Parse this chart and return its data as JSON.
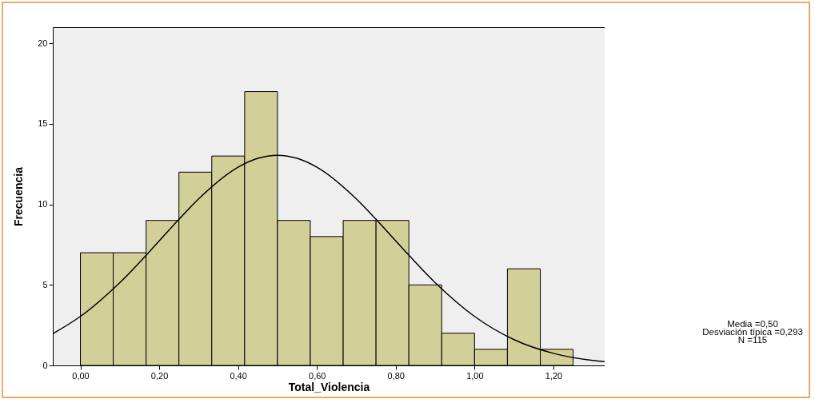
{
  "chart_data": {
    "type": "histogram",
    "xlabel": "Total_Violencia",
    "ylabel": "Frecuencia",
    "bins": [
      0,
      0.0833,
      0.1667,
      0.25,
      0.3333,
      0.4167,
      0.5,
      0.5833,
      0.6667,
      0.75,
      0.8333,
      0.9167,
      1,
      1.0833,
      1.1667,
      1.25
    ],
    "values": [
      7,
      7,
      9,
      12,
      13,
      17,
      9,
      8,
      9,
      9,
      5,
      2,
      1,
      6,
      1
    ],
    "color": "#d3cf98",
    "series": [
      {
        "type": "line",
        "color": "#000000",
        "x": [
          -0.07,
          0,
          0.1,
          0.2,
          0.25,
          0.3,
          0.4,
          0.45,
          0.5,
          0.55,
          0.6,
          0.7,
          0.75,
          0.8,
          0.9,
          1,
          1.1,
          1.2,
          1.3,
          1.33
        ],
        "values": [
          1.97,
          3.04,
          5.14,
          7.73,
          9.07,
          10.34,
          12.31,
          12.86,
          13.05,
          12.86,
          12.31,
          10.34,
          9.07,
          7.73,
          5.14,
          3.04,
          1.6,
          0.75,
          0.31,
          0.24
        ]
      }
    ],
    "xlim": [
      -0.07,
      1.33
    ],
    "xticks": [
      {
        "value": 0,
        "label": "0,00"
      },
      {
        "value": 0.2,
        "label": "0,20"
      },
      {
        "value": 0.4,
        "label": "0,40"
      },
      {
        "value": 0.6,
        "label": "0,60"
      },
      {
        "value": 0.8,
        "label": "0,80"
      },
      {
        "value": 1,
        "label": "1,00"
      },
      {
        "value": 1.2,
        "label": "1,20"
      }
    ],
    "ylim": [
      0,
      21
    ],
    "yticks": [
      0,
      5,
      10,
      15,
      20
    ],
    "grid": false,
    "annotations": [
      "Media =0,50",
      "Desviación típica =0,293",
      "N =115"
    ]
  }
}
